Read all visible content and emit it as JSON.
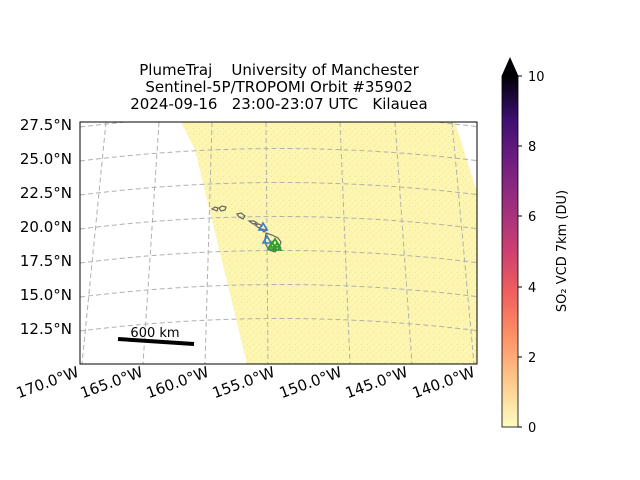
{
  "title": {
    "line1": "PlumeTraj    University of Manchester",
    "line2": "Sentinel-5P/TROPOMI Orbit #35902",
    "line3": "2024-09-16   23:00-23:07 UTC   Kilauea"
  },
  "map": {
    "lat_labels": [
      "27.5°N",
      "25.0°N",
      "22.5°N",
      "20.0°N",
      "17.5°N",
      "15.0°N",
      "12.5°N"
    ],
    "lon_labels": [
      "170.0°W",
      "165.0°W",
      "160.0°W",
      "155.0°W",
      "150.0°W",
      "145.0°W",
      "140.0°W"
    ],
    "scale_bar_label": "600 km",
    "gridlines": true,
    "swath_color": "#fdf6b0",
    "coastline_color": "#666666",
    "markers": [
      {
        "name": "volcano-marker",
        "color": "#3b7fc4"
      },
      {
        "name": "vent-marker",
        "color": "#2ca02c"
      }
    ]
  },
  "colorbar": {
    "label": "SO₂ VCD 7km (DU)",
    "min": 0,
    "max": 10,
    "ticks": [
      "0",
      "2",
      "4",
      "6",
      "8",
      "10"
    ],
    "colormap": "magma_r",
    "extend": "max"
  }
}
